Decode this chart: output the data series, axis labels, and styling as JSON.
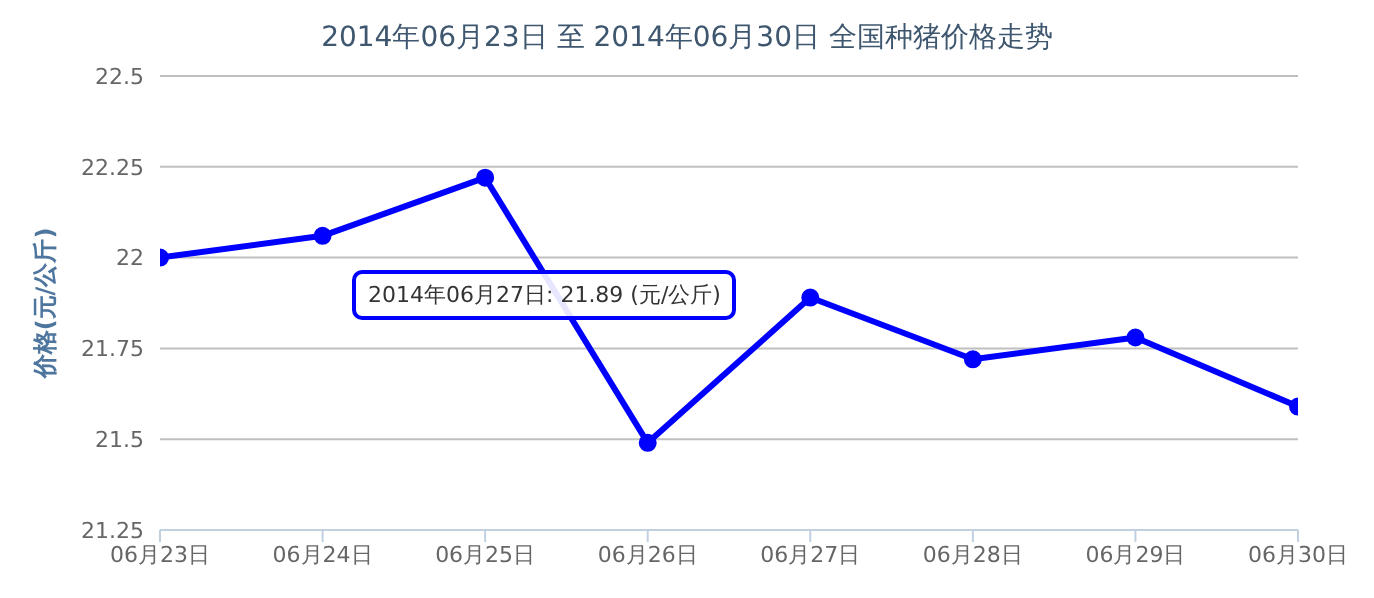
{
  "chart_data": {
    "type": "line",
    "title": "2014年06月23日 至 2014年06月30日 全国种猪价格走势",
    "ylabel": "价格(元/公斤)",
    "categories": [
      "06月23日",
      "06月24日",
      "06月25日",
      "06月26日",
      "06月27日",
      "06月28日",
      "06月29日",
      "06月30日"
    ],
    "series": [
      {
        "color": "#0000ff",
        "values": [
          22.0,
          22.06,
          22.22,
          21.49,
          21.89,
          21.72,
          21.78,
          21.59
        ]
      }
    ],
    "ylim": [
      21.25,
      22.5
    ],
    "yticks": [
      21.25,
      21.5,
      21.75,
      22,
      22.25,
      22.5
    ],
    "grid": "y",
    "marker": "circle",
    "line_style": "solid",
    "legend": false,
    "annotations": [
      "2014年06月27日: 21.89 (元/公斤)"
    ]
  }
}
